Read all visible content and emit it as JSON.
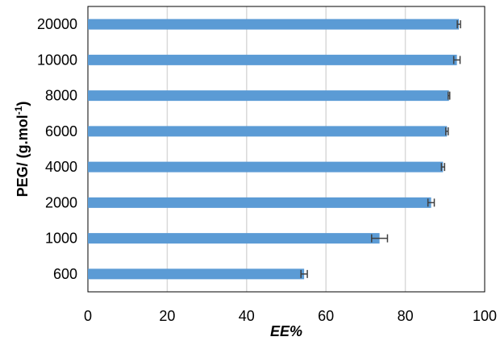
{
  "chart_data": {
    "type": "bar",
    "orientation": "horizontal",
    "categories": [
      "600",
      "1000",
      "2000",
      "4000",
      "6000",
      "8000",
      "10000",
      "20000"
    ],
    "values": [
      54.5,
      73.5,
      86.5,
      89.5,
      90.5,
      91,
      93,
      93.5
    ],
    "errors": [
      0.8,
      2.0,
      0.8,
      0.4,
      0.3,
      0.2,
      0.8,
      0.4
    ],
    "xlabel": "EE%",
    "ylabel_main": "PEG/ (g.mol",
    "ylabel_superscript": "-1",
    "ylabel_close": ")",
    "xlim": [
      0,
      100
    ],
    "xticks": [
      "0",
      "20",
      "40",
      "60",
      "80",
      "100"
    ],
    "grid": "vertical",
    "legend": "none",
    "colors": {
      "bar": "#5b9bd5",
      "error_bar": "#404040",
      "grid": "#d9d9d9",
      "axis": "#000000"
    }
  }
}
